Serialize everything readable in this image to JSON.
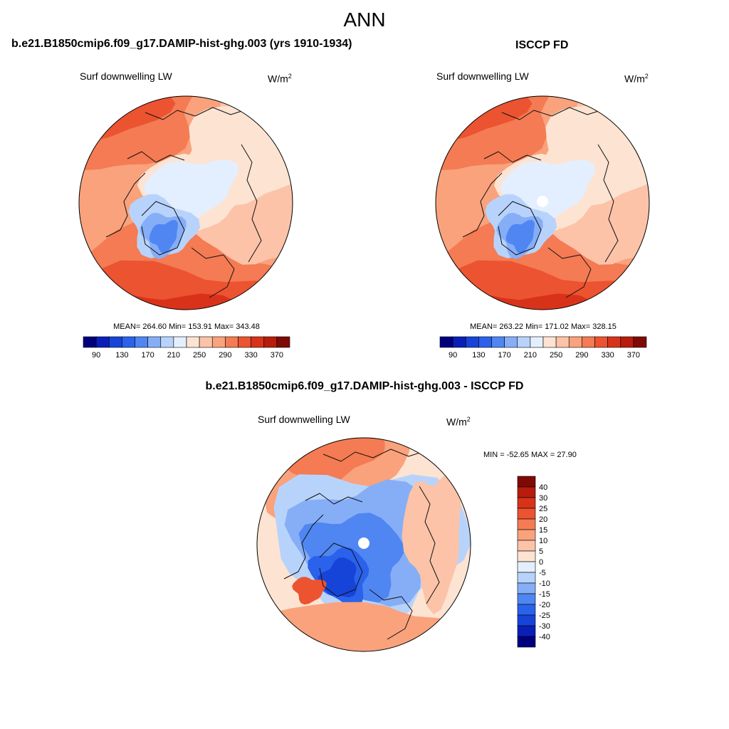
{
  "main_title": "ANN",
  "panels": [
    {
      "title": "b.e21.B1850cmip6.f09_g17.DAMIP-hist-ghg.003 (yrs 1910-1934)",
      "var_label": "Surf downwelling LW",
      "units_base": "W/m",
      "units_exp": "2",
      "stats": "MEAN= 264.60  Min= 153.91  Max= 343.48"
    },
    {
      "title": "ISCCP FD",
      "var_label": "Surf downwelling LW",
      "units_base": "W/m",
      "units_exp": "2",
      "stats": "MEAN= 263.22  Min= 171.02  Max= 328.15"
    },
    {
      "title": "b.e21.B1850cmip6.f09_g17.DAMIP-hist-ghg.003 - ISCCP FD",
      "var_label": "Surf downwelling LW",
      "units_base": "W/m",
      "units_exp": "2",
      "stats": "MIN = -52.65 MAX =  27.90"
    }
  ],
  "chart_data": [
    {
      "type": "heatmap",
      "projection": "north polar stereographic",
      "title": "b.e21.B1850cmip6.f09_g17.DAMIP-hist-ghg.003 (yrs 1910-1934)",
      "variable": "Surf downwelling LW",
      "units": "W/m2",
      "mean": 264.6,
      "min": 153.91,
      "max": 343.48,
      "levels": [
        90,
        110,
        130,
        150,
        170,
        190,
        210,
        230,
        250,
        270,
        290,
        310,
        330,
        350,
        370
      ],
      "tick_labels": [
        "90",
        "130",
        "170",
        "210",
        "250",
        "290",
        "330",
        "370"
      ],
      "colors": [
        "#00007f",
        "#0a1fb8",
        "#1744d8",
        "#2a62ec",
        "#4f86f2",
        "#86aef7",
        "#b8d3fb",
        "#e3efff",
        "#fde3d2",
        "#fcc3a8",
        "#f9a27c",
        "#f47b53",
        "#ec5330",
        "#d8331a",
        "#b81c0c",
        "#7f0a05"
      ]
    },
    {
      "type": "heatmap",
      "projection": "north polar stereographic",
      "title": "ISCCP FD",
      "variable": "Surf downwelling LW",
      "units": "W/m2",
      "mean": 263.22,
      "min": 171.02,
      "max": 328.15,
      "levels": [
        90,
        110,
        130,
        150,
        170,
        190,
        210,
        230,
        250,
        270,
        290,
        310,
        330,
        350,
        370
      ],
      "tick_labels": [
        "90",
        "130",
        "170",
        "210",
        "250",
        "290",
        "330",
        "370"
      ],
      "colors": [
        "#00007f",
        "#0a1fb8",
        "#1744d8",
        "#2a62ec",
        "#4f86f2",
        "#86aef7",
        "#b8d3fb",
        "#e3efff",
        "#fde3d2",
        "#fcc3a8",
        "#f9a27c",
        "#f47b53",
        "#ec5330",
        "#d8331a",
        "#b81c0c",
        "#7f0a05"
      ]
    },
    {
      "type": "heatmap",
      "projection": "north polar stereographic",
      "title": "b.e21.B1850cmip6.f09_g17.DAMIP-hist-ghg.003 - ISCCP FD",
      "variable": "Surf downwelling LW",
      "units": "W/m2",
      "min": -52.65,
      "max": 27.9,
      "levels": [
        40,
        30,
        25,
        20,
        15,
        10,
        5,
        0,
        -5,
        -10,
        -15,
        -20,
        -25,
        -30,
        -40
      ],
      "tick_labels": [
        "40",
        "30",
        "25",
        "20",
        "15",
        "10",
        "5",
        "0",
        "-5",
        "-10",
        "-15",
        "-20",
        "-25",
        "-30",
        "-40"
      ],
      "colors": [
        "#7f0a05",
        "#b81c0c",
        "#d8331a",
        "#ec5330",
        "#f47b53",
        "#f9a27c",
        "#fcc3a8",
        "#fde3d2",
        "#e3efff",
        "#b8d3fb",
        "#86aef7",
        "#4f86f2",
        "#2a62ec",
        "#1744d8",
        "#0a1fb8",
        "#00007f"
      ]
    }
  ]
}
